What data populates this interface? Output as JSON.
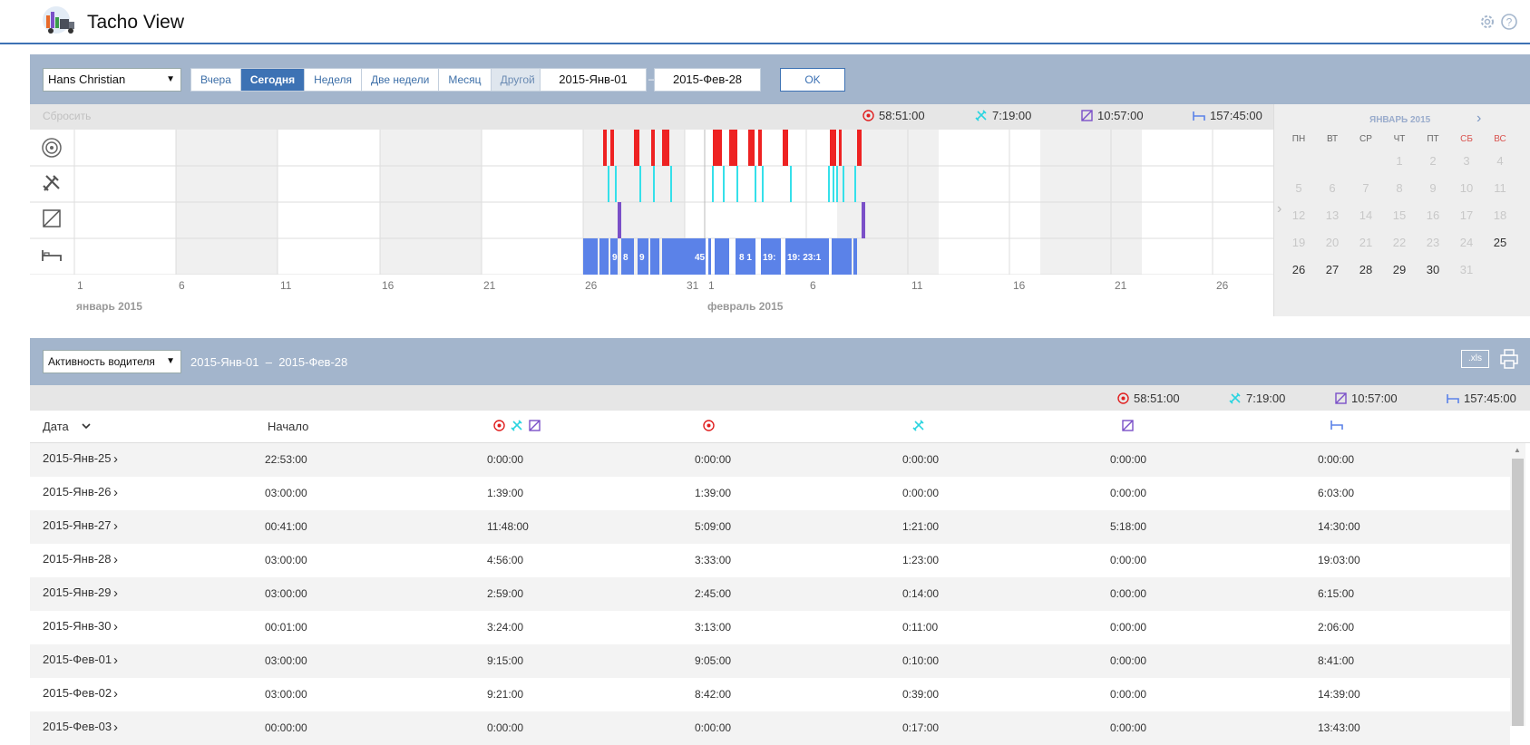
{
  "app": {
    "title": "Tacho View"
  },
  "filter": {
    "driver": "Hans Christian",
    "periods": [
      "Вчера",
      "Сегодня",
      "Неделя",
      "Две недели",
      "Месяц",
      "Другой"
    ],
    "active_period": 1,
    "date_from": "2015-Янв-01",
    "date_sep": "–",
    "date_to": "2015-Фев-28",
    "ok": "OK"
  },
  "timeline": {
    "reset": "Сбросить",
    "totals": {
      "driving": "58:51:00",
      "work": "7:19:00",
      "availability": "10:57:00",
      "rest": "157:45:00"
    },
    "ticks": [
      "1",
      "6",
      "11",
      "16",
      "21",
      "26",
      "31",
      "1",
      "6",
      "11",
      "16",
      "21",
      "26"
    ],
    "months": [
      "январь 2015",
      "февраль 2015"
    ],
    "rest_labels": [
      "9",
      "8",
      "9",
      "45:",
      "8 1",
      "19:",
      "19: 23:1"
    ]
  },
  "calendar": {
    "title": "ЯНВАРЬ 2015",
    "weekdays": [
      "ПН",
      "ВТ",
      "СР",
      "ЧТ",
      "ПТ",
      "СБ",
      "ВС"
    ],
    "weeks": [
      [
        "",
        "",
        "",
        "1",
        "2",
        "3",
        "4"
      ],
      [
        "5",
        "6",
        "7",
        "8",
        "9",
        "10",
        "11"
      ],
      [
        "12",
        "13",
        "14",
        "15",
        "16",
        "17",
        "18"
      ],
      [
        "19",
        "20",
        "21",
        "22",
        "23",
        "24",
        "25"
      ],
      [
        "26",
        "27",
        "28",
        "29",
        "30",
        "31",
        ""
      ]
    ]
  },
  "report": {
    "type": "Активность водителя",
    "range": "2015-Янв-01  –  2015-Фев-28",
    "xls": ".xls",
    "totals": {
      "driving": "58:51:00",
      "work": "7:19:00",
      "availability": "10:57:00",
      "rest": "157:45:00"
    },
    "headers": {
      "date": "Дата",
      "start": "Начало"
    },
    "rows": [
      [
        "2015-Янв-25",
        "22:53:00",
        "0:00:00",
        "0:00:00",
        "0:00:00",
        "0:00:00",
        "0:00:00"
      ],
      [
        "2015-Янв-26",
        "03:00:00",
        "1:39:00",
        "1:39:00",
        "0:00:00",
        "0:00:00",
        "6:03:00"
      ],
      [
        "2015-Янв-27",
        "00:41:00",
        "11:48:00",
        "5:09:00",
        "1:21:00",
        "5:18:00",
        "14:30:00"
      ],
      [
        "2015-Янв-28",
        "03:00:00",
        "4:56:00",
        "3:33:00",
        "1:23:00",
        "0:00:00",
        "19:03:00"
      ],
      [
        "2015-Янв-29",
        "03:00:00",
        "2:59:00",
        "2:45:00",
        "0:14:00",
        "0:00:00",
        "6:15:00"
      ],
      [
        "2015-Янв-30",
        "00:01:00",
        "3:24:00",
        "3:13:00",
        "0:11:00",
        "0:00:00",
        "2:06:00"
      ],
      [
        "2015-Фев-01",
        "03:00:00",
        "9:15:00",
        "9:05:00",
        "0:10:00",
        "0:00:00",
        "8:41:00"
      ],
      [
        "2015-Фев-02",
        "03:00:00",
        "9:21:00",
        "8:42:00",
        "0:39:00",
        "0:00:00",
        "14:39:00"
      ],
      [
        "2015-Фев-03",
        "00:00:00",
        "0:00:00",
        "0:00:00",
        "0:17:00",
        "0:00:00",
        "13:43:00"
      ]
    ]
  },
  "colors": {
    "accent": "#3d72b4",
    "driving": "#e02020",
    "work": "#2ad4e0",
    "availability": "#7b50c8",
    "rest": "#5b82e8"
  }
}
